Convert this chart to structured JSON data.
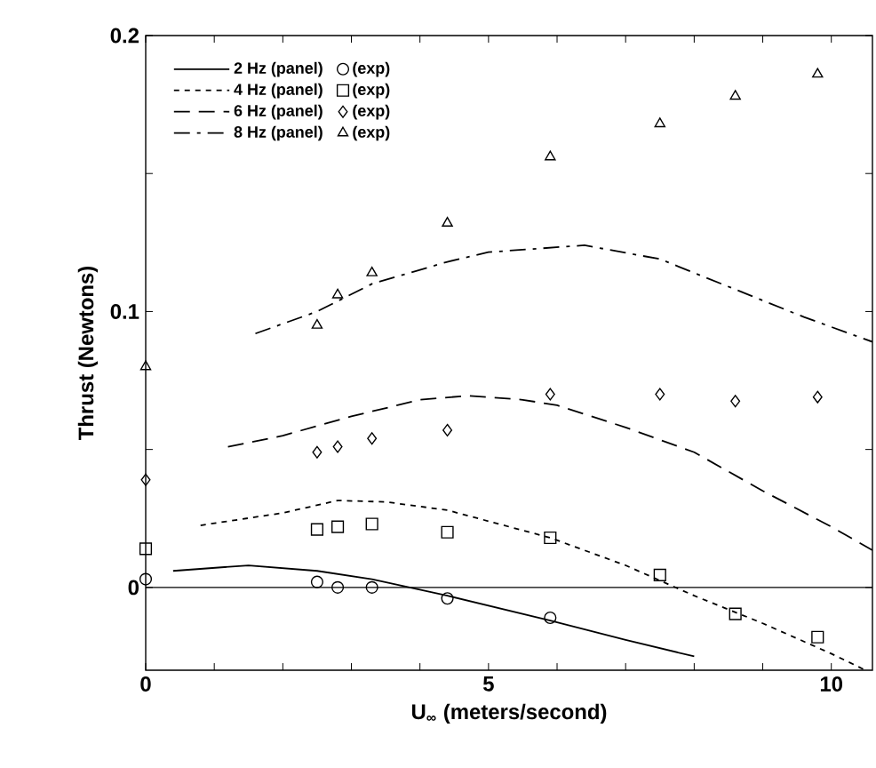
{
  "chart_data": {
    "type": "line",
    "xlabel": "U$_{∞}$ (meters/second)",
    "ylabel": "Thrust (Newtons)",
    "xlim": [
      0,
      10.6
    ],
    "ylim": [
      -0.03,
      0.2
    ],
    "xticks": [
      0,
      {
        "value": 1,
        "label": null
      },
      {
        "value": 2,
        "label": null
      },
      {
        "value": 3,
        "label": null
      },
      {
        "value": 4,
        "label": null
      },
      5,
      {
        "value": 6,
        "label": null
      },
      {
        "value": 7,
        "label": null
      },
      {
        "value": 8,
        "label": null
      },
      {
        "value": 9,
        "label": null
      },
      10
    ],
    "yticks": [
      0,
      {
        "value": 0.05,
        "label": null
      },
      0.1,
      {
        "value": 0.15,
        "label": null
      },
      0.2
    ],
    "legend": "top left",
    "ref_lines": [
      {
        "axis": "y",
        "value": 0
      }
    ],
    "series": [
      {
        "name": "2 Hz (panel)",
        "line_style": "solid",
        "color": "#000000",
        "x": [
          0.4,
          1.5,
          2.5,
          3.3,
          4.4,
          5.9,
          7,
          8
        ],
        "values": [
          0.006,
          0.008,
          0.006,
          0.003,
          -0.003,
          -0.012,
          -0.019,
          -0.025
        ]
      },
      {
        "name": "(exp)",
        "type": "scatter",
        "marker": "circle",
        "color": "#000000",
        "x": [
          0,
          2.5,
          2.8,
          3.3,
          4.4,
          5.9
        ],
        "values": [
          0.003,
          0.002,
          0,
          0,
          -0.004,
          -0.011
        ]
      },
      {
        "name": "4 Hz (panel)",
        "line_style": "dotted",
        "color": "#000000",
        "x": [
          0.8,
          2,
          2.8,
          3.5,
          4.4,
          5.9,
          7,
          8,
          9,
          10,
          10.5
        ],
        "values": [
          0.0225,
          0.027,
          0.0315,
          0.031,
          0.028,
          0.018,
          0.008,
          -0.003,
          -0.013,
          -0.024,
          -0.03
        ]
      },
      {
        "name": "(exp)",
        "type": "scatter",
        "marker": "square",
        "color": "#000000",
        "x": [
          0,
          2.5,
          2.8,
          3.3,
          4.4,
          5.9,
          7.5,
          8.6,
          9.8
        ],
        "values": [
          0.014,
          0.021,
          0.022,
          0.023,
          0.02,
          0.018,
          0.0045,
          -0.0096,
          -0.018
        ]
      },
      {
        "name": "6 Hz (panel)",
        "line_style": "dashed",
        "color": "#000000",
        "x": [
          1.2,
          2,
          3,
          4,
          4.7,
          5.5,
          6,
          7,
          8,
          9,
          10,
          10.6
        ],
        "values": [
          0.051,
          0.055,
          0.062,
          0.068,
          0.0695,
          0.068,
          0.066,
          0.058,
          0.049,
          0.035,
          0.022,
          0.0135
        ]
      },
      {
        "name": "(exp)",
        "type": "scatter",
        "marker": "diamond",
        "color": "#000000",
        "x": [
          0,
          2.5,
          2.8,
          3.3,
          4.4,
          5.9,
          7.5,
          8.6,
          9.8
        ],
        "values": [
          0.039,
          0.049,
          0.051,
          0.054,
          0.057,
          0.07,
          0.07,
          0.0675,
          0.069
        ]
      },
      {
        "name": "8 Hz (panel)",
        "line_style": "dashdot",
        "color": "#000000",
        "x": [
          1.6,
          2.5,
          3.3,
          4.4,
          5,
          6.4,
          7.5,
          8.6,
          9.6,
          10.6
        ],
        "values": [
          0.092,
          0.1,
          0.11,
          0.118,
          0.1215,
          0.124,
          0.119,
          0.108,
          0.098,
          0.089
        ]
      },
      {
        "name": "(exp)",
        "type": "scatter",
        "marker": "triangle",
        "color": "#000000",
        "x": [
          0,
          2.5,
          2.8,
          3.3,
          4.4,
          5.9,
          7.5,
          8.6,
          9.8
        ],
        "values": [
          0.08,
          0.095,
          0.106,
          0.114,
          0.132,
          0.156,
          0.168,
          0.178,
          0.186
        ]
      }
    ]
  }
}
